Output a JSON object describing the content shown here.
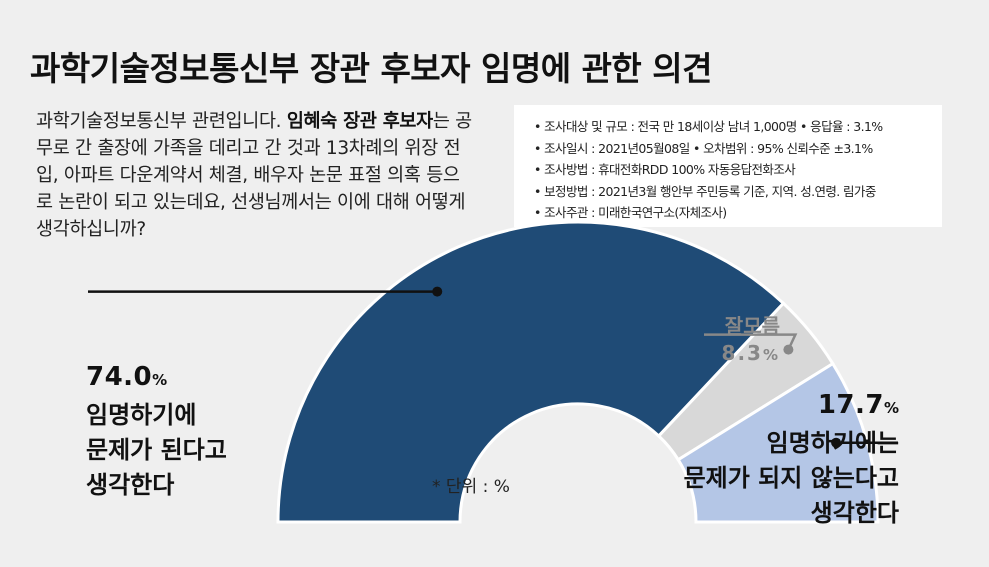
{
  "title": "과학기술정보통신부 장관 후보자 임명에 관한 의견",
  "question": {
    "part1": "과학기술정보통신부 관련입니다. ",
    "bold": "임혜숙 장관 후보자",
    "part2": "는 공무로 간 출장에 가족을 데리고 간 것과 13차례의 위장 전입, 아파트 다운계약서 체결, 배우자 논문 표절 의혹 등으로 논란이 되고 있는데요, 선생님께서는 이에 대해 어떻게 생각하십니까?"
  },
  "survey_info": [
    "조사대상 및 규모 : 전국 만 18세이상 남녀 1,000명  • 응답율 : 3.1%",
    "조사일시 : 2021년05월08일  • 오차범위 : 95% 신뢰수준 ±3.1%",
    "조사방법 : 휴대전화RDD 100% 자동응답전화조사",
    "보정방법 : 2021년3월 행안부 주민등록 기준, 지역. 성.연령. 림가중",
    "조사주관 : 미래한국연구소(자체조사)"
  ],
  "unit_note": "* 단위 : %",
  "chart_data": {
    "type": "pie",
    "variant": "semi-donut",
    "categories": [
      "임명하기에 문제가 된다고 생각한다",
      "잘모름",
      "임명하기에는 문제가 되지 않는다고 생각한다"
    ],
    "values": [
      74.0,
      8.3,
      17.7
    ],
    "colors": [
      "#1f4b76",
      "#d8d8d8",
      "#b4c6e6"
    ],
    "labels": {
      "problem": {
        "value": "74.0",
        "unit": "%",
        "lines": [
          "임명하기에",
          "문제가 된다고",
          "생각한다"
        ]
      },
      "unknown": {
        "name": "잘모름",
        "value": "8.3",
        "unit": "%"
      },
      "no_problem": {
        "value": "17.7",
        "unit": "%",
        "lines": [
          "임명하기에는",
          "문제가 되지 않는다고",
          "생각한다"
        ]
      }
    },
    "legend": "none"
  }
}
